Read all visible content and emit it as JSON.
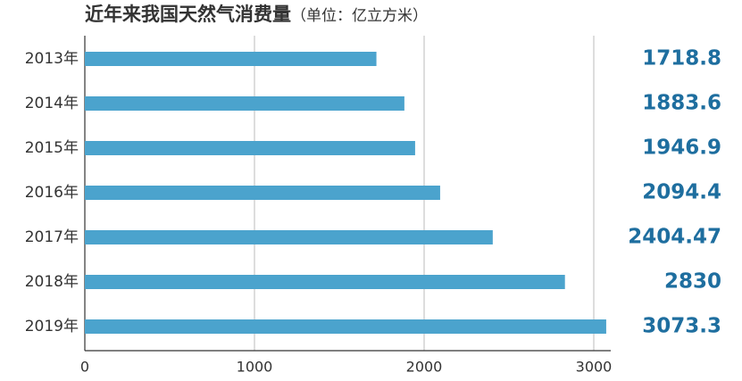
{
  "chart_data": {
    "type": "bar",
    "orientation": "horizontal",
    "title": "近年来我国天然气消费量",
    "subtitle": "（单位：亿立方米）",
    "categories": [
      "2013年",
      "2014年",
      "2015年",
      "2016年",
      "2017年",
      "2018年",
      "2019年"
    ],
    "values": [
      1718.8,
      1883.6,
      1946.9,
      2094.4,
      2404.47,
      2830,
      3073.3
    ],
    "color": "#4ba3cd",
    "label_color": "#1e6e9f",
    "xlim": [
      0,
      3100
    ],
    "xticks": [
      0,
      1000,
      2000,
      3000
    ],
    "grid": true
  }
}
